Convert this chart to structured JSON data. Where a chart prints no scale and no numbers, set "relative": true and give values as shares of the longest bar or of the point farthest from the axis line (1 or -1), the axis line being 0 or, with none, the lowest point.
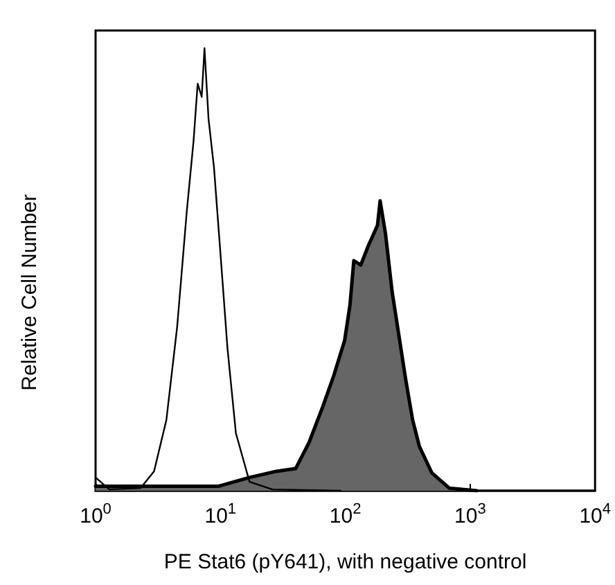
{
  "chart_data": {
    "type": "line",
    "relative": true,
    "xlabel": "PE Stat6 (pY641), with negative control",
    "ylabel": "Relative Cell Number",
    "log": "x",
    "xlim": [
      1,
      10000
    ],
    "xticks": [
      {
        "value": 1,
        "label": "10$^{0}$"
      },
      {
        "value": 10,
        "label": "10$^{1}$"
      },
      {
        "value": 100,
        "label": "10$^{2}$"
      },
      {
        "value": 1000,
        "label": "10$^{3}$"
      },
      {
        "value": 10000,
        "label": "10$^{4}$"
      }
    ],
    "grid": false,
    "marker": "none",
    "line_style": "solid",
    "series": [
      {
        "color": "#000000",
        "x": [
          1.0,
          1.29,
          2.29,
          2.94,
          3.69,
          4.5,
          5.37,
          6.09,
          6.57,
          7.08,
          7.45,
          8.03,
          8.88,
          10.1,
          11.4,
          13.3,
          17.1,
          26.1,
          91.6
        ],
        "values": [
          0.03,
          0.003,
          0.006,
          0.044,
          0.16,
          0.37,
          0.63,
          0.79,
          0.92,
          0.89,
          1.0,
          0.84,
          0.73,
          0.52,
          0.32,
          0.13,
          0.02,
          0.003,
          0
        ]
      },
      {
        "type": "area",
        "color": "#666666",
        "x": [
          1.0,
          3.5,
          9.6,
          17.1,
          28.1,
          40,
          51.4,
          66,
          80.8,
          98.8,
          109,
          117,
          133,
          151,
          181,
          190,
          210,
          237,
          269,
          305,
          346,
          392,
          494,
          679,
          1129
        ],
        "values": [
          0.01,
          0.01,
          0.01,
          0.03,
          0.044,
          0.05,
          0.11,
          0.19,
          0.26,
          0.34,
          0.42,
          0.52,
          0.51,
          0.55,
          0.6,
          0.655,
          0.58,
          0.45,
          0.35,
          0.25,
          0.16,
          0.1,
          0.04,
          0.006,
          0
        ]
      }
    ]
  }
}
